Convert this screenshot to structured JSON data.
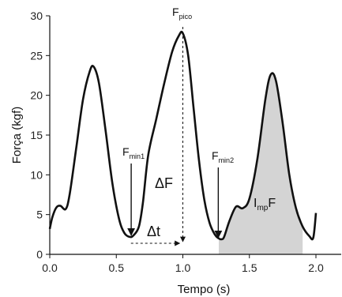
{
  "chart_data": {
    "type": "line",
    "xlabel": "Tempo (s)",
    "ylabel": "Força (kgf)",
    "xlim": [
      0.0,
      2.15
    ],
    "ylim": [
      0,
      30
    ],
    "xticks": [
      0.0,
      0.5,
      1.0,
      1.5,
      2.0
    ],
    "xtick_labels": [
      "0.0",
      "0.5",
      "1.0",
      "1.5",
      "2.0"
    ],
    "yticks": [
      0,
      5,
      10,
      15,
      20,
      25,
      30
    ],
    "ytick_labels": [
      "0",
      "5",
      "10",
      "15",
      "20",
      "25",
      "30"
    ],
    "grid": false,
    "series": [
      {
        "color": "#111111",
        "x": [
          0.0,
          0.02,
          0.05,
          0.08,
          0.12,
          0.15,
          0.2,
          0.25,
          0.3,
          0.33,
          0.37,
          0.42,
          0.47,
          0.52,
          0.56,
          0.6,
          0.63,
          0.67,
          0.7,
          0.74,
          0.8,
          0.86,
          0.92,
          0.97,
          1.0,
          1.04,
          1.08,
          1.12,
          1.16,
          1.2,
          1.24,
          1.27,
          1.29,
          1.31,
          1.35,
          1.4,
          1.45,
          1.5,
          1.56,
          1.62,
          1.66,
          1.7,
          1.75,
          1.8,
          1.85,
          1.9,
          1.95,
          1.98,
          2.0
        ],
        "y": [
          3.2,
          4.7,
          5.9,
          6.1,
          5.7,
          7.6,
          13.5,
          19.5,
          23.0,
          23.6,
          21.5,
          15.5,
          9.0,
          4.5,
          2.7,
          2.2,
          2.4,
          3.5,
          6.5,
          12.5,
          17.0,
          21.5,
          25.5,
          27.5,
          27.8,
          25.0,
          18.5,
          12.0,
          7.0,
          4.0,
          2.5,
          2.0,
          1.9,
          2.2,
          4.2,
          6.0,
          5.8,
          7.0,
          12.0,
          19.5,
          22.6,
          21.8,
          16.5,
          10.0,
          5.8,
          3.5,
          2.3,
          2.1,
          5.2
        ]
      }
    ],
    "shaded_region": {
      "x_from": 1.27,
      "x_to": 1.94,
      "color": "#d4d4d4"
    },
    "annotations": {
      "fpico": {
        "main": "F",
        "sub": "pico",
        "x": 1.0
      },
      "fmin1": {
        "main": "F",
        "sub": "min1",
        "x": 0.6,
        "y": 2.2
      },
      "fmin2": {
        "main": "F",
        "sub": "min2",
        "x": 1.29,
        "y": 1.9
      },
      "delta_f": "ΔF",
      "delta_t": "Δt",
      "impf": {
        "main": "I",
        "sub": "mp",
        "tail": "F"
      }
    }
  }
}
